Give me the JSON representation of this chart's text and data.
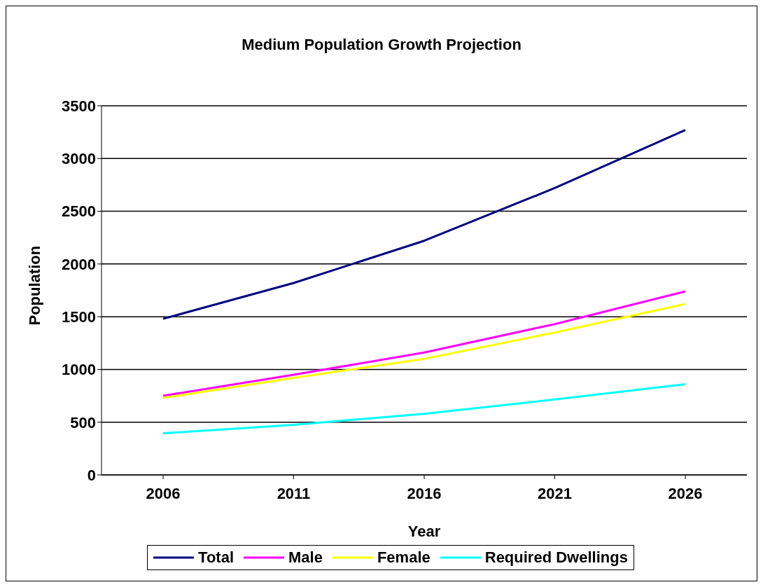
{
  "chart_data": {
    "type": "line",
    "title": "Medium Population Growth Projection",
    "xlabel": "Year",
    "ylabel": "Population",
    "categories": [
      "2006",
      "2011",
      "2016",
      "2021",
      "2026"
    ],
    "series": [
      {
        "name": "Total",
        "color": "#000080",
        "values": [
          1480,
          1820,
          2220,
          2720,
          3270
        ]
      },
      {
        "name": "Male",
        "color": "#ff00ff",
        "values": [
          750,
          950,
          1160,
          1430,
          1740
        ]
      },
      {
        "name": "Female",
        "color": "#ffff00",
        "values": [
          730,
          920,
          1100,
          1350,
          1620
        ]
      },
      {
        "name": "Required Dwellings",
        "color": "#00ffff",
        "values": [
          395,
          475,
          580,
          715,
          860
        ]
      }
    ],
    "ylim": [
      0,
      3500
    ],
    "yticks": [
      0,
      500,
      1000,
      1500,
      2000,
      2500,
      3000,
      3500
    ],
    "grid": "y",
    "legend": "bottom",
    "marker": "none",
    "line_style": "solid"
  }
}
